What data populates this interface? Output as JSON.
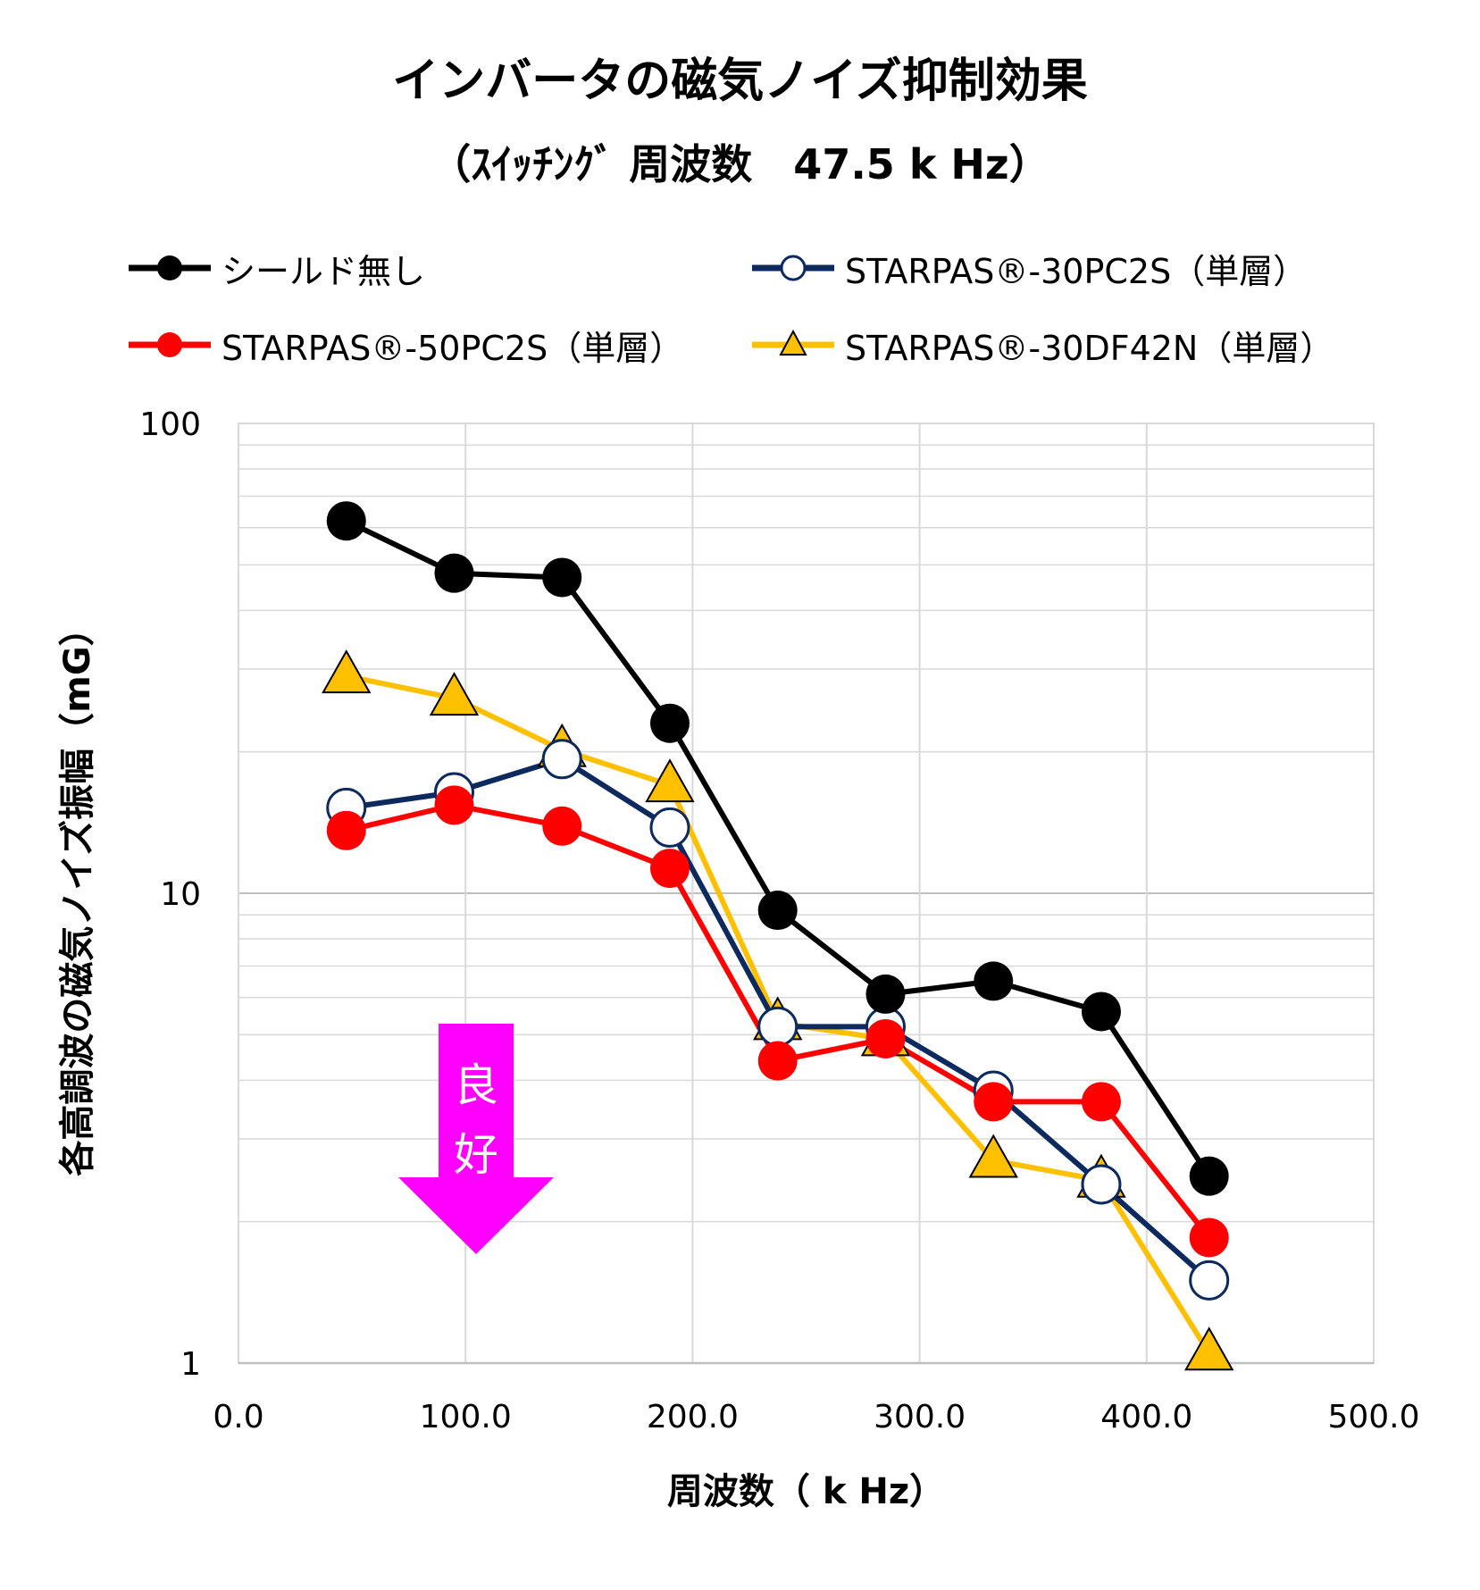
{
  "title": "インバータの磁気ノイズ抑制効果",
  "subtitle": "（ｽｲｯﾁﾝｸﾞ 周波数　47.5 k Hz）",
  "annotation": {
    "arrow_label_line1": "良",
    "arrow_label_line2": "好",
    "arrow_color": "#FF00FF"
  },
  "chart_data": {
    "type": "line",
    "xlabel": "周波数（ k Hz）",
    "ylabel": "各高調波の磁気ノイズ振幅（mG）",
    "xlim": [
      0,
      500
    ],
    "ylim": [
      1,
      100
    ],
    "y_scale": "log",
    "x_ticks": [
      "0.0",
      "100.0",
      "200.0",
      "300.0",
      "400.0",
      "500.0"
    ],
    "y_ticks": [
      "1",
      "10",
      "100"
    ],
    "grid": true,
    "legend_position": "top",
    "x": [
      47.5,
      95,
      142.5,
      190,
      237.5,
      285,
      332.5,
      380,
      427.5
    ],
    "series": [
      {
        "name": "シールド無し",
        "color": "#000000",
        "marker": "filled-circle",
        "values": [
          62,
          48,
          47,
          23,
          9.2,
          6.1,
          6.5,
          5.6,
          2.5
        ]
      },
      {
        "name": "STARPAS®-30PC2S（単層）",
        "color": "#0D2A5E",
        "marker": "open-circle",
        "values": [
          15.2,
          16.4,
          19.3,
          13.8,
          5.2,
          5.2,
          3.8,
          2.4,
          1.5
        ]
      },
      {
        "name": "STARPAS®-50PC2S（単層）",
        "color": "#FF0000",
        "marker": "filled-circle",
        "values": [
          13.6,
          15.4,
          13.9,
          11.3,
          4.4,
          4.9,
          3.6,
          3.6,
          1.85
        ]
      },
      {
        "name": "STARPAS®-30DF42N（単層）",
        "color": "#FFC000",
        "marker": "triangle",
        "values": [
          29,
          26,
          20.2,
          17,
          5.3,
          4.9,
          2.7,
          2.45,
          1.05
        ]
      }
    ]
  }
}
